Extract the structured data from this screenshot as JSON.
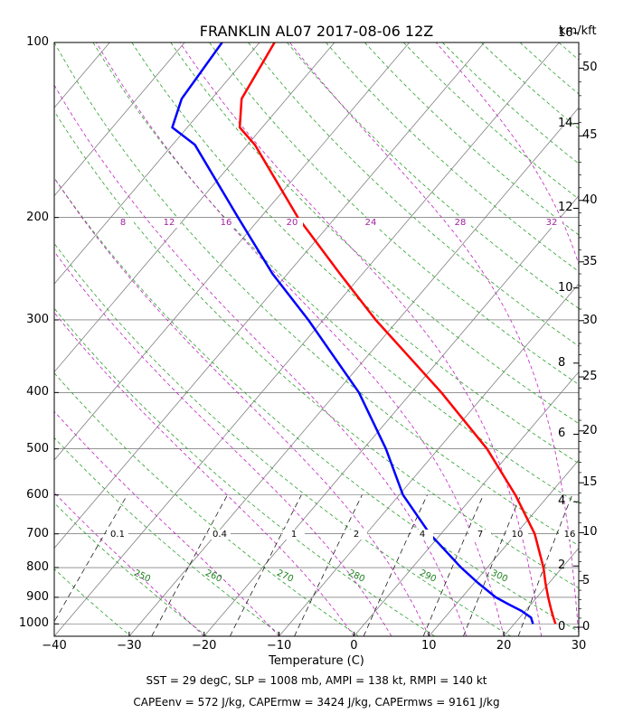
{
  "title": "FRANKLIN AL07 2017-08-06 12Z",
  "unit_label": "km/kft",
  "footer_line1": "SST = 29 degC, SLP = 1008 mb, AMPI = 138 kt, RMPI = 140 kt",
  "footer_line2": "CAPEenv = 572 J/kg, CAPErmw = 3424 J/kg, CAPErmws = 9161 J/kg",
  "colors": {
    "temperature": "#ff0000",
    "dewpoint": "#0000ff",
    "dry_adiabat": "#2ca02c",
    "moist_adiabat": "#c020c0",
    "isotherm": "#808080",
    "mixing_ratio": "#000000"
  },
  "chart_data": {
    "type": "skew-t",
    "title": "FRANKLIN AL07 2017-08-06 12Z",
    "xlabel": "Temperature (C)",
    "ylabel": "",
    "xlim": [
      -40,
      30
    ],
    "ylim": [
      1050,
      100
    ],
    "y_scale": "log",
    "grid": true,
    "x_ticks": [
      "−40",
      "−30",
      "−20",
      "−10",
      "0",
      "10",
      "20",
      "30"
    ],
    "y_ticks": [
      "100",
      "200",
      "300",
      "400",
      "500",
      "600",
      "700",
      "800",
      "900",
      "1000"
    ],
    "km_ticks": [
      "0",
      "2",
      "4",
      "6",
      "8",
      "10",
      "12",
      "14",
      "16"
    ],
    "kft_ticks": [
      "0",
      "5",
      "10",
      "15",
      "20",
      "25",
      "30",
      "35",
      "40",
      "45",
      "50"
    ],
    "mixing_ratio_labels": [
      "0.1",
      "0.4",
      "1",
      "2",
      "4",
      "7",
      "10",
      "16"
    ],
    "moist_labels": [
      "8",
      "12",
      "16",
      "20",
      "24",
      "28",
      "32"
    ],
    "theta_labels": [
      "250",
      "260",
      "270",
      "280",
      "290",
      "300"
    ],
    "series": [
      {
        "role": "temperature",
        "pressure": [
          1000,
          975,
          950,
          925,
          900,
          850,
          800,
          700,
          600,
          500,
          400,
          300,
          250,
          200,
          150,
          140,
          125,
          100
        ],
        "values": [
          25.5,
          24.5,
          23.5,
          22.5,
          21.5,
          19.5,
          17.5,
          12.5,
          5.5,
          -3.5,
          -16,
          -33,
          -43,
          -55,
          -69,
          -73,
          -76,
          -78
        ]
      },
      {
        "role": "dewpoint",
        "pressure": [
          1000,
          975,
          950,
          925,
          900,
          850,
          800,
          700,
          600,
          500,
          400,
          300,
          250,
          200,
          150,
          140,
          125,
          100
        ],
        "values": [
          22.5,
          21.5,
          19.5,
          17,
          14.5,
          10.5,
          6.5,
          -1.5,
          -9.5,
          -17,
          -27,
          -42,
          -52,
          -63,
          -77,
          -82,
          -84,
          -85
        ]
      }
    ]
  }
}
